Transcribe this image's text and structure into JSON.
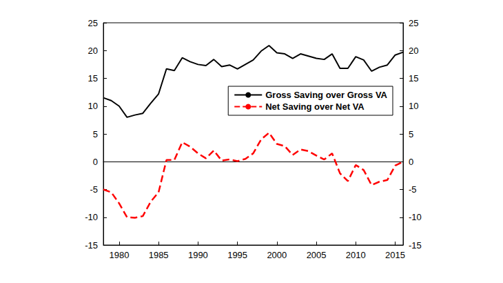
{
  "chart_data": {
    "type": "line",
    "x": [
      1978,
      1979,
      1980,
      1981,
      1982,
      1983,
      1984,
      1985,
      1986,
      1987,
      1988,
      1989,
      1990,
      1991,
      1992,
      1993,
      1994,
      1995,
      1996,
      1997,
      1998,
      1999,
      2000,
      2001,
      2002,
      2003,
      2004,
      2005,
      2006,
      2007,
      2008,
      2009,
      2010,
      2011,
      2012,
      2013,
      2014,
      2015,
      2016
    ],
    "series": [
      {
        "name": "Gross Saving over Gross VA",
        "color": "#000000",
        "line_style": "solid",
        "values": [
          11.5,
          11,
          10,
          8,
          8.4,
          8.7,
          10.5,
          12.2,
          16.7,
          16.4,
          18.7,
          18,
          17.5,
          17.3,
          18.4,
          17.1,
          17.4,
          16.7,
          17.5,
          18.3,
          19.9,
          20.9,
          19.6,
          19.4,
          18.6,
          19.4,
          19,
          18.6,
          18.4,
          19.4,
          16.8,
          16.8,
          18.9,
          18.3,
          16.3,
          17,
          17.4,
          19.2,
          19.7
        ]
      },
      {
        "name": "Net Saving over Net VA",
        "color": "#ff0000",
        "line_style": "dashed",
        "values": [
          -5,
          -5.5,
          -7.5,
          -10,
          -10.1,
          -9.8,
          -7.2,
          -5.5,
          0.3,
          0.3,
          3.5,
          2.7,
          1.5,
          0.6,
          2,
          0.2,
          0.4,
          0.1,
          0.5,
          1.5,
          4,
          5.2,
          3.2,
          2.8,
          1.2,
          2.2,
          1.9,
          1.1,
          0.4,
          1.5,
          -2.1,
          -3.5,
          -0.6,
          -1.5,
          -4.2,
          -3.6,
          -3.3,
          -0.7,
          0
        ]
      }
    ],
    "xlim": [
      1978,
      2016
    ],
    "xticks": [
      1980,
      1985,
      1990,
      1995,
      2000,
      2005,
      2010,
      2015
    ],
    "ylim": [
      -15,
      25
    ],
    "yticks": [
      -15,
      -10,
      -5,
      0,
      5,
      10,
      15,
      20,
      25
    ],
    "y2lim": [
      -15,
      25
    ],
    "y2ticks": [
      -15,
      -10,
      -5,
      0,
      5,
      10,
      15,
      20,
      25
    ],
    "legend": "upper right",
    "grid": false
  }
}
